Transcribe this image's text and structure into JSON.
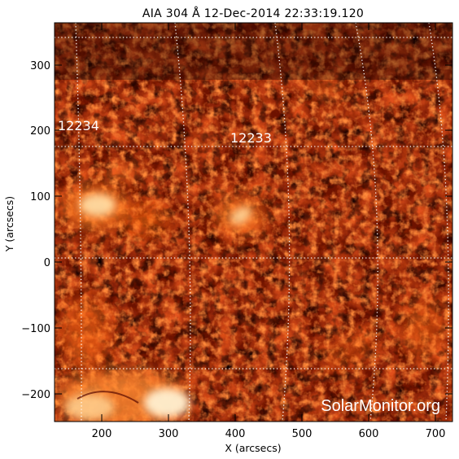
{
  "title": "AIA 304 Å 12-Dec-2014 22:33:19.120",
  "xlabel": "X (arcsecs)",
  "ylabel": "Y (arcsecs)",
  "x_ticks": [
    "200",
    "300",
    "400",
    "500",
    "600",
    "700"
  ],
  "y_ticks": [
    "300",
    "200",
    "100",
    "0",
    "−100",
    "−200"
  ],
  "regions": [
    "12234",
    "12233"
  ],
  "watermark": "SolarMonitor.org",
  "colors": {
    "background": "#ffffff",
    "frame": "#000000",
    "grid": "#ffffff",
    "sun_dark": "#1a0300",
    "sun_mid": "#8a1a00",
    "sun_bright": "#ffd9a0"
  },
  "chart_data": {
    "type": "heatmap",
    "title": "AIA 304 Å 12-Dec-2014 22:33:19.120",
    "xlabel": "X (arcsecs)",
    "ylabel": "Y (arcsecs)",
    "xlim": [
      125,
      730
    ],
    "ylim": [
      -243,
      368
    ],
    "x_ticks": [
      200,
      300,
      400,
      500,
      600,
      700
    ],
    "y_ticks": [
      300,
      200,
      100,
      0,
      -100,
      -200
    ],
    "grid": true,
    "grid_style": "dotted heliographic",
    "annotations": [
      {
        "text": "12234",
        "x": 150,
        "y": 200
      },
      {
        "text": "12233",
        "x": 435,
        "y": 185
      }
    ]
  }
}
